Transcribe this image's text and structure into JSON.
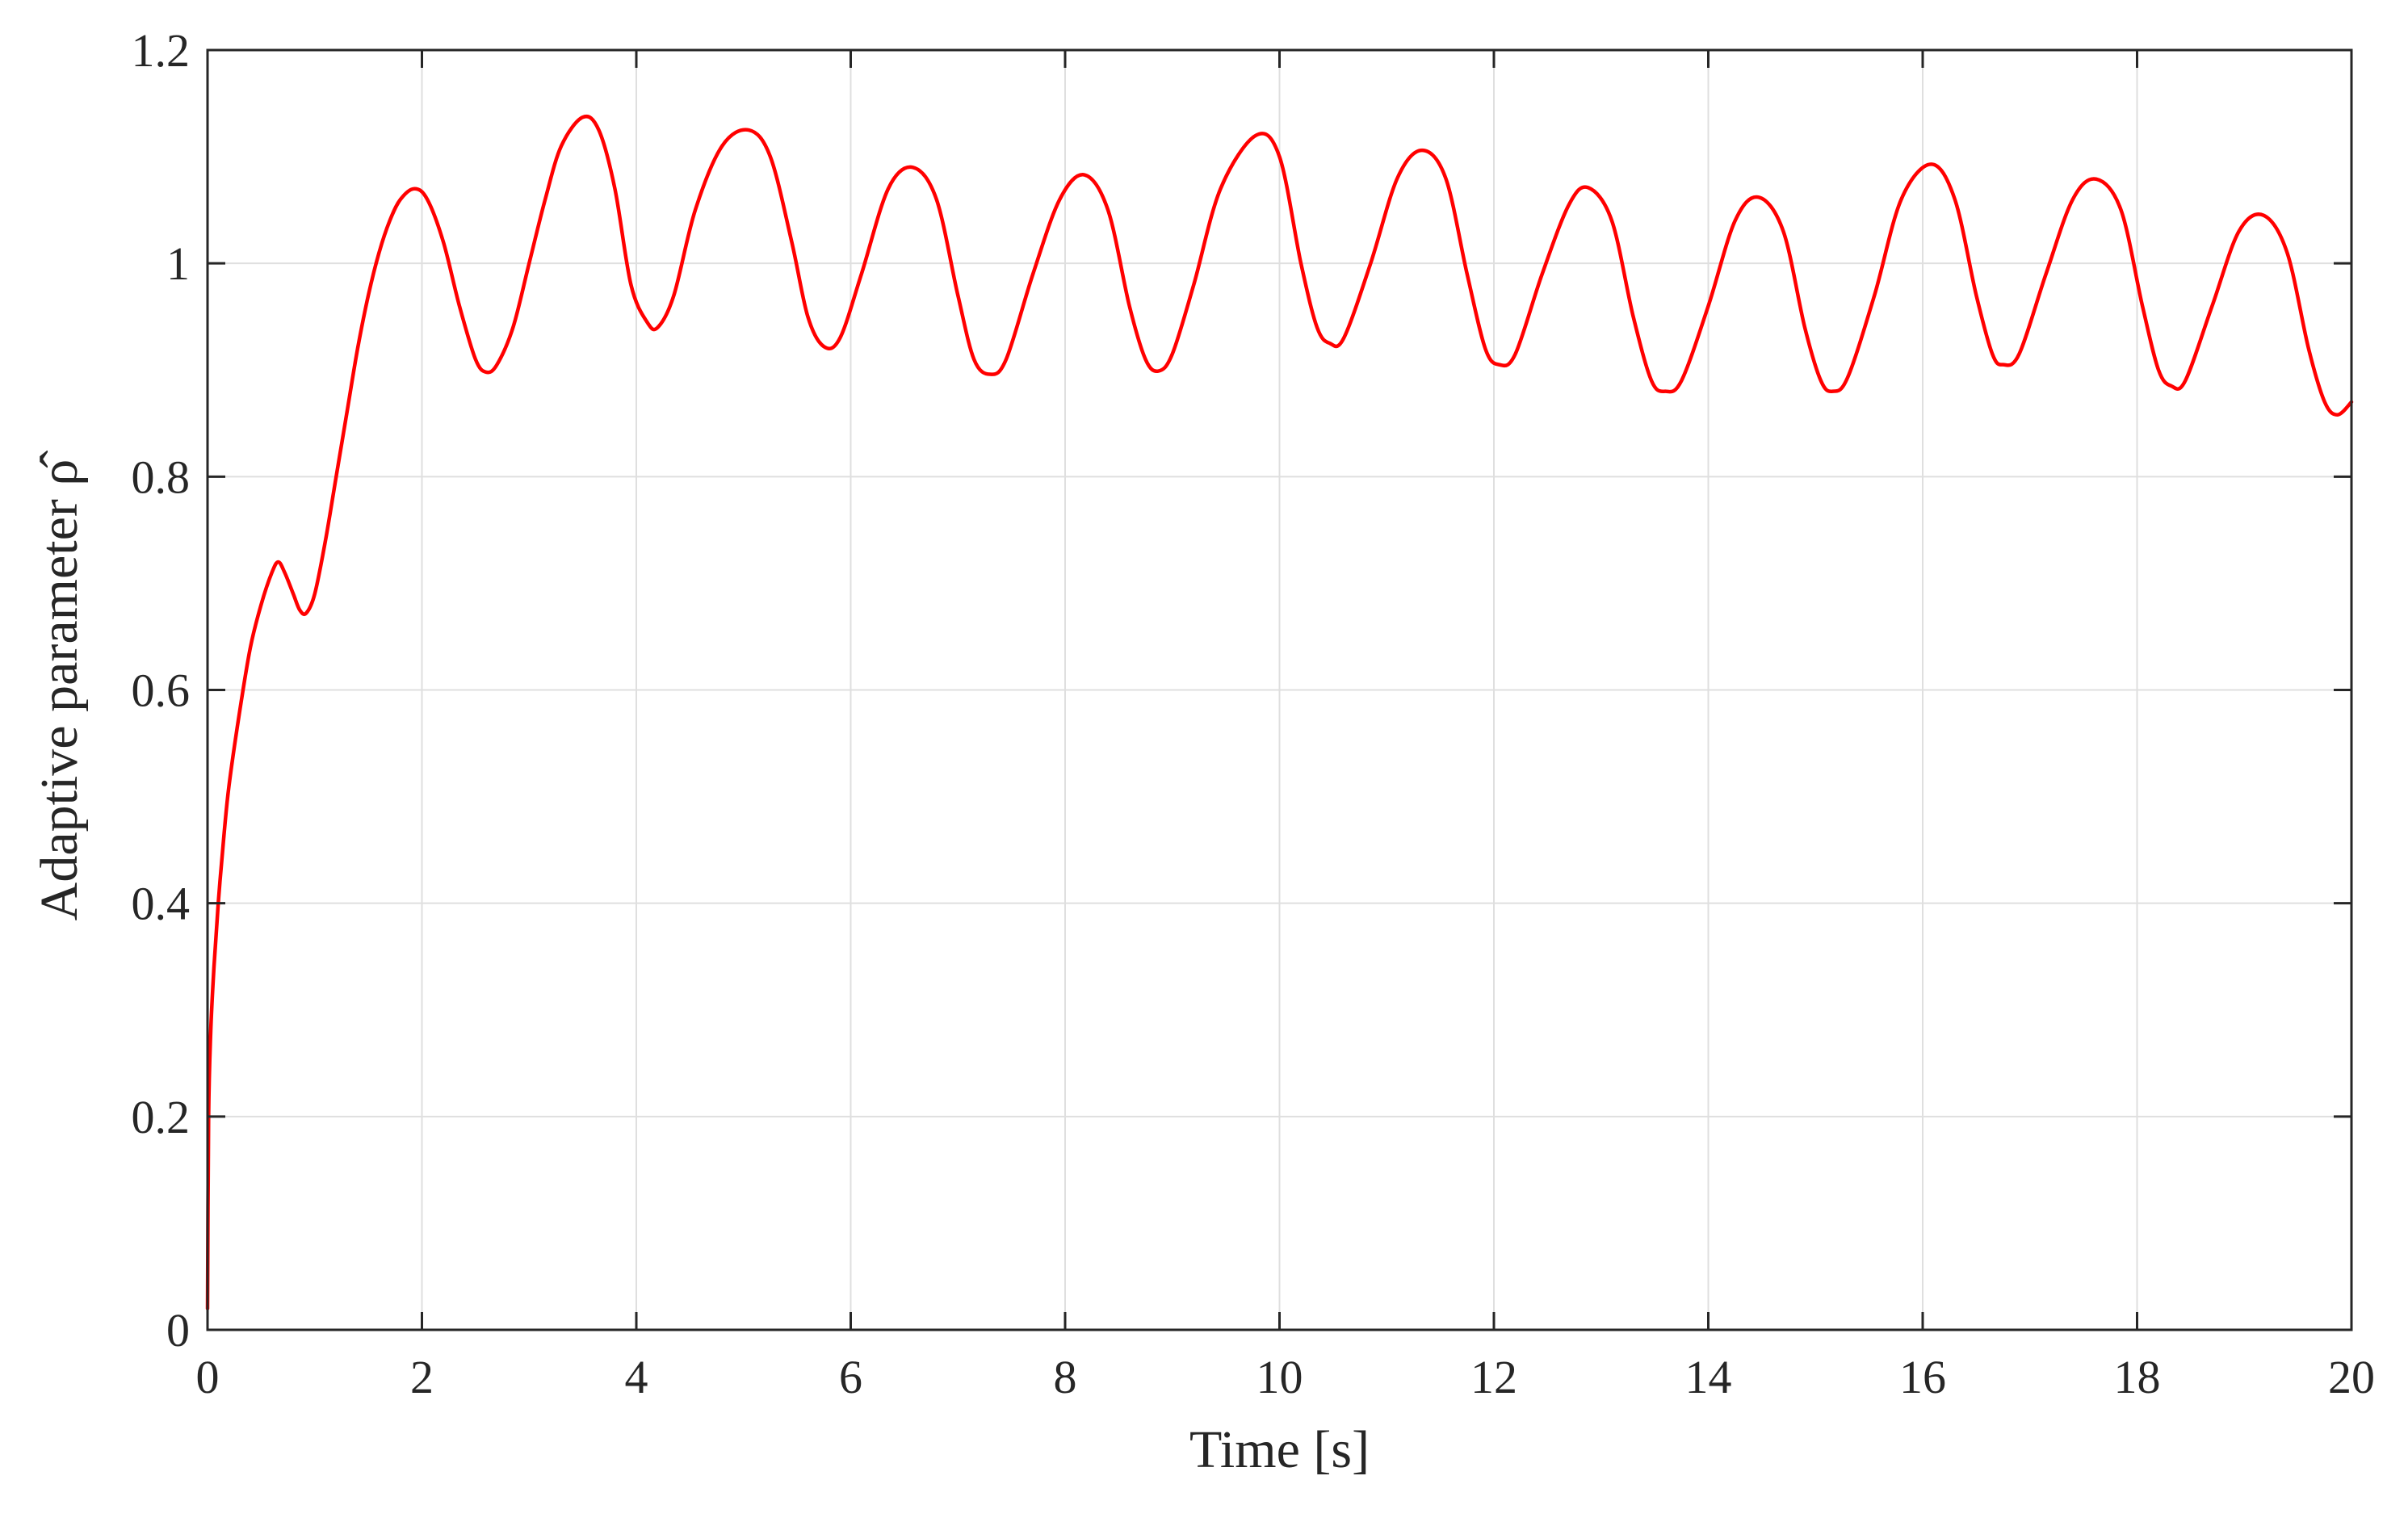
{
  "chart_data": {
    "type": "line",
    "xlabel": "Time [s]",
    "ylabel": "Adaptive parameter ρ̂",
    "xlim": [
      0,
      20
    ],
    "ylim": [
      0,
      1.2
    ],
    "xticks": [
      0,
      2,
      4,
      6,
      8,
      10,
      12,
      14,
      16,
      18,
      20
    ],
    "yticks": [
      0,
      0.2,
      0.4,
      0.6,
      0.8,
      1,
      1.2
    ],
    "xtick_labels": [
      "0",
      "2",
      "4",
      "6",
      "8",
      "10",
      "12",
      "14",
      "16",
      "18",
      "20"
    ],
    "ytick_labels": [
      "0",
      "0.2",
      "0.4",
      "0.6",
      "0.8",
      "1",
      "1.2"
    ],
    "grid": true,
    "series": [
      {
        "color": "#ff0000",
        "points": [
          [
            0,
            0.02
          ],
          [
            0.01,
            0.2
          ],
          [
            0.03,
            0.28
          ],
          [
            0.06,
            0.34
          ],
          [
            0.1,
            0.4
          ],
          [
            0.15,
            0.46
          ],
          [
            0.2,
            0.51
          ],
          [
            0.3,
            0.58
          ],
          [
            0.4,
            0.64
          ],
          [
            0.5,
            0.68
          ],
          [
            0.6,
            0.71
          ],
          [
            0.66,
            0.72
          ],
          [
            0.72,
            0.71
          ],
          [
            0.8,
            0.69
          ],
          [
            0.86,
            0.675
          ],
          [
            0.92,
            0.672
          ],
          [
            1.0,
            0.69
          ],
          [
            1.1,
            0.74
          ],
          [
            1.2,
            0.8
          ],
          [
            1.3,
            0.86
          ],
          [
            1.4,
            0.92
          ],
          [
            1.5,
            0.97
          ],
          [
            1.6,
            1.01
          ],
          [
            1.7,
            1.04
          ],
          [
            1.8,
            1.06
          ],
          [
            1.93,
            1.07
          ],
          [
            2.05,
            1.06
          ],
          [
            2.2,
            1.02
          ],
          [
            2.35,
            0.96
          ],
          [
            2.5,
            0.91
          ],
          [
            2.6,
            0.898
          ],
          [
            2.7,
            0.905
          ],
          [
            2.85,
            0.94
          ],
          [
            3.0,
            1.0
          ],
          [
            3.15,
            1.06
          ],
          [
            3.3,
            1.11
          ],
          [
            3.5,
            1.137
          ],
          [
            3.65,
            1.125
          ],
          [
            3.8,
            1.07
          ],
          [
            3.95,
            0.98
          ],
          [
            4.1,
            0.945
          ],
          [
            4.2,
            0.94
          ],
          [
            4.35,
            0.97
          ],
          [
            4.55,
            1.05
          ],
          [
            4.8,
            1.11
          ],
          [
            5.05,
            1.125
          ],
          [
            5.25,
            1.1
          ],
          [
            5.45,
            1.02
          ],
          [
            5.6,
            0.95
          ],
          [
            5.75,
            0.922
          ],
          [
            5.9,
            0.93
          ],
          [
            6.1,
            0.99
          ],
          [
            6.35,
            1.07
          ],
          [
            6.58,
            1.09
          ],
          [
            6.8,
            1.06
          ],
          [
            7.0,
            0.97
          ],
          [
            7.15,
            0.91
          ],
          [
            7.3,
            0.896
          ],
          [
            7.45,
            0.91
          ],
          [
            7.7,
            0.99
          ],
          [
            7.95,
            1.06
          ],
          [
            8.18,
            1.083
          ],
          [
            8.4,
            1.05
          ],
          [
            8.6,
            0.96
          ],
          [
            8.75,
            0.91
          ],
          [
            8.87,
            0.899
          ],
          [
            9.0,
            0.915
          ],
          [
            9.2,
            0.98
          ],
          [
            9.45,
            1.07
          ],
          [
            9.78,
            1.12
          ],
          [
            10.0,
            1.1
          ],
          [
            10.2,
            1.0
          ],
          [
            10.35,
            0.94
          ],
          [
            10.47,
            0.925
          ],
          [
            10.6,
            0.93
          ],
          [
            10.85,
            1.0
          ],
          [
            11.1,
            1.08
          ],
          [
            11.33,
            1.106
          ],
          [
            11.55,
            1.08
          ],
          [
            11.75,
            0.99
          ],
          [
            11.92,
            0.92
          ],
          [
            12.05,
            0.905
          ],
          [
            12.2,
            0.915
          ],
          [
            12.45,
            0.99
          ],
          [
            12.7,
            1.055
          ],
          [
            12.88,
            1.071
          ],
          [
            13.1,
            1.04
          ],
          [
            13.3,
            0.95
          ],
          [
            13.47,
            0.89
          ],
          [
            13.6,
            0.88
          ],
          [
            13.75,
            0.89
          ],
          [
            14.0,
            0.96
          ],
          [
            14.25,
            1.04
          ],
          [
            14.47,
            1.062
          ],
          [
            14.7,
            1.03
          ],
          [
            14.9,
            0.94
          ],
          [
            15.05,
            0.89
          ],
          [
            15.16,
            0.88
          ],
          [
            15.3,
            0.893
          ],
          [
            15.55,
            0.97
          ],
          [
            15.8,
            1.06
          ],
          [
            16.08,
            1.093
          ],
          [
            16.3,
            1.06
          ],
          [
            16.5,
            0.97
          ],
          [
            16.65,
            0.915
          ],
          [
            16.75,
            0.905
          ],
          [
            16.9,
            0.915
          ],
          [
            17.15,
            0.99
          ],
          [
            17.4,
            1.06
          ],
          [
            17.62,
            1.079
          ],
          [
            17.85,
            1.05
          ],
          [
            18.05,
            0.96
          ],
          [
            18.2,
            0.9
          ],
          [
            18.32,
            0.885
          ],
          [
            18.45,
            0.89
          ],
          [
            18.7,
            0.96
          ],
          [
            18.95,
            1.03
          ],
          [
            19.18,
            1.045
          ],
          [
            19.4,
            1.01
          ],
          [
            19.6,
            0.92
          ],
          [
            19.75,
            0.87
          ],
          [
            19.87,
            0.858
          ],
          [
            20.0,
            0.87
          ]
        ]
      }
    ]
  }
}
